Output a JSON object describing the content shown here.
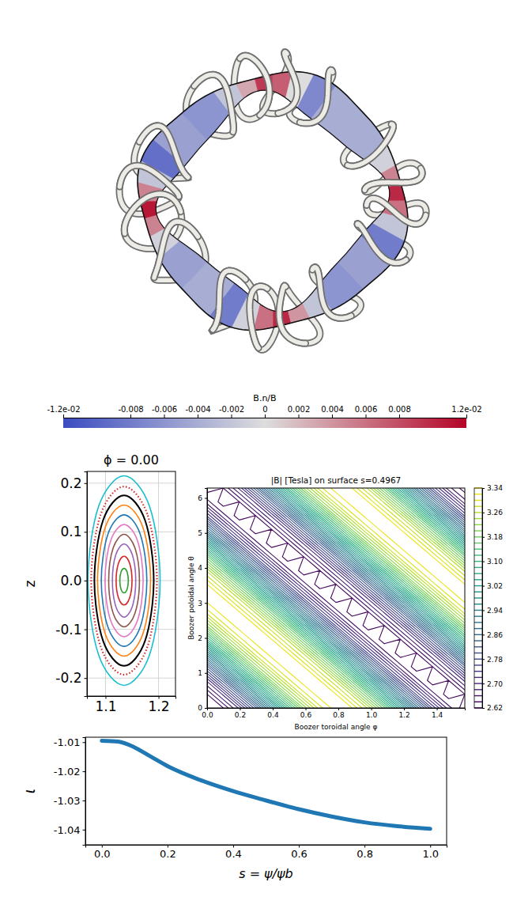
{
  "chart_data": [
    {
      "type": "surface",
      "colorbar_label": "B.n/B",
      "colorbar_range": [
        -0.012,
        0.012
      ],
      "colorbar_ticks": [
        {
          "value": -0.012,
          "label": "-1.2e-02"
        },
        -0.008,
        -0.006,
        -0.004,
        -0.002,
        0,
        0.002,
        0.004,
        0.006,
        0.008,
        {
          "value": 0.012,
          "label": "1.2e-02"
        }
      ],
      "bn_values": [
        -0.006,
        -0.002,
        0.004,
        0.01,
        0.006,
        -0.001,
        -0.008,
        -0.004,
        -0.005,
        -0.001,
        0.005,
        0.011,
        0.005,
        -0.002,
        -0.009,
        -0.005,
        -0.006,
        -0.002,
        0.003,
        0.009,
        0.007,
        0.0,
        -0.007,
        -0.004,
        -0.004,
        -0.001,
        0.005,
        0.01,
        0.006,
        -0.002,
        -0.008,
        -0.005
      ]
    },
    {
      "type": "poincare",
      "title": "ϕ = 0.00",
      "y_label": "z",
      "xlim": [
        1.065,
        1.232
      ],
      "ylim": [
        -0.237,
        0.224
      ],
      "xticks": [
        1.1,
        1.2
      ],
      "yticks": [
        -0.2,
        -0.1,
        {
          "value": 0,
          "label": "0.0"
        },
        0.1,
        0.2
      ],
      "grid": true,
      "series": [
        {
          "color": "#2ca02c",
          "x": [
            1.143,
            1.1407,
            1.135,
            1.1293,
            1.127,
            1.1293,
            1.135,
            1.1407
          ],
          "values": [
            0,
            0.0177,
            0.025,
            0.0177,
            0,
            -0.0177,
            -0.025,
            -0.0177
          ]
        },
        {
          "color": "#d62728",
          "x": [
            1.15,
            1.1456,
            1.135,
            1.1244,
            1.12,
            1.1244,
            1.135,
            1.1456
          ],
          "values": [
            0,
            0.0354,
            0.05,
            0.0354,
            0,
            -0.0354,
            -0.05,
            -0.0354
          ]
        },
        {
          "color": "#9467bd",
          "x": [
            1.157,
            1.1506,
            1.135,
            1.1194,
            1.113,
            1.1194,
            1.135,
            1.1506
          ],
          "values": [
            0,
            0.053,
            0.075,
            0.053,
            0,
            -0.053,
            -0.075,
            -0.053
          ]
        },
        {
          "color": "#8c564b",
          "x": [
            1.164,
            1.1555,
            1.135,
            1.1145,
            1.106,
            1.1145,
            1.135,
            1.1555
          ],
          "values": [
            0,
            0.0672,
            0.095,
            0.0672,
            0,
            -0.0672,
            -0.095,
            -0.0672
          ]
        },
        {
          "color": "#e377c2",
          "x": [
            1.171,
            1.1605,
            1.135,
            1.1095,
            1.099,
            1.1095,
            1.135,
            1.1605
          ],
          "values": [
            0,
            0.0813,
            0.115,
            0.0813,
            0,
            -0.0813,
            -0.115,
            -0.0813
          ]
        },
        {
          "color": "#1f77b4",
          "x": [
            1.178,
            1.1654,
            1.135,
            1.1046,
            1.092,
            1.1046,
            1.135,
            1.1654
          ],
          "values": [
            0,
            0.0955,
            0.135,
            0.0955,
            0,
            -0.0955,
            -0.135,
            -0.0955
          ]
        },
        {
          "color": "#ff7f0e",
          "x": [
            1.185,
            1.1704,
            1.135,
            1.0996,
            1.085,
            1.0996,
            1.135,
            1.1704
          ],
          "values": [
            0,
            0.1096,
            0.155,
            0.1096,
            0,
            -0.1096,
            -0.155,
            -0.1096
          ]
        },
        {
          "color": "#000000",
          "x": [
            1.191,
            1.1746,
            1.135,
            1.0954,
            1.079,
            1.0954,
            1.135,
            1.1746
          ],
          "values": [
            0,
            0.1237,
            0.175,
            0.1237,
            0,
            -0.1237,
            -0.175,
            -0.1237
          ]
        },
        {
          "color": "#d62728",
          "line_style": "dotted",
          "x": [
            1.197,
            1.1788,
            1.135,
            1.0912,
            1.073,
            1.0912,
            1.135,
            1.1788
          ],
          "values": [
            0,
            0.1365,
            0.193,
            0.1365,
            0,
            -0.1365,
            -0.193,
            -0.1365
          ]
        },
        {
          "color": "#17becf",
          "x": [
            1.203,
            1.1831,
            1.135,
            1.0869,
            1.067,
            1.0869,
            1.135,
            1.1831
          ],
          "values": [
            0,
            0.152,
            0.215,
            0.152,
            0,
            -0.152,
            -0.215,
            -0.152
          ]
        }
      ]
    },
    {
      "type": "contour",
      "title": "|B| [Tesla] on surface s=0.4967",
      "x_label": "Boozer toroidal angle φ",
      "y_label": "Boozer poloidal angle θ",
      "xlim": [
        0,
        1.5708
      ],
      "ylim": [
        0,
        6.2832
      ],
      "xticks": [
        {
          "value": 0,
          "label": "0.0"
        },
        0.2,
        0.4,
        0.6,
        0.8,
        {
          "value": 1,
          "label": "1.0"
        },
        1.2,
        1.4
      ],
      "yticks": [
        0,
        1,
        2,
        3,
        4,
        5,
        6
      ],
      "x": [
        0,
        0.0982,
        0.1963,
        0.2945,
        0.3927,
        0.4909,
        0.589,
        0.6872,
        0.7854,
        0.8836,
        0.9817,
        1.0799,
        1.1781,
        1.2763,
        1.3744,
        1.4726,
        1.5708
      ],
      "y": [
        0,
        0.3927,
        0.7854,
        1.1781,
        1.5708,
        1.9635,
        2.3562,
        2.7489,
        3.1416,
        3.5343,
        3.927,
        4.3197,
        4.7124,
        5.1051,
        5.4978,
        5.8905,
        6.2832
      ],
      "z": [
        [
          2.627,
          2.64,
          2.705,
          2.812,
          2.945,
          3.082,
          3.205,
          3.293,
          3.333,
          3.32,
          3.255,
          3.148,
          3.015,
          2.878,
          2.755,
          2.667,
          2.627
        ],
        [
          2.64,
          2.705,
          2.812,
          2.945,
          3.082,
          3.205,
          3.293,
          3.333,
          3.32,
          3.255,
          3.148,
          3.015,
          2.878,
          2.755,
          2.667,
          2.627,
          2.64
        ],
        [
          2.705,
          2.812,
          2.945,
          3.082,
          3.205,
          3.293,
          3.333,
          3.32,
          3.255,
          3.148,
          3.015,
          2.878,
          2.755,
          2.667,
          2.627,
          2.64,
          2.705
        ],
        [
          2.812,
          2.945,
          3.082,
          3.205,
          3.293,
          3.333,
          3.32,
          3.255,
          3.148,
          3.015,
          2.878,
          2.755,
          2.667,
          2.627,
          2.64,
          2.705,
          2.812
        ],
        [
          2.945,
          3.082,
          3.205,
          3.293,
          3.333,
          3.32,
          3.255,
          3.148,
          3.015,
          2.878,
          2.755,
          2.667,
          2.627,
          2.64,
          2.705,
          2.812,
          2.945
        ],
        [
          3.082,
          3.205,
          3.293,
          3.333,
          3.32,
          3.255,
          3.148,
          3.015,
          2.878,
          2.755,
          2.667,
          2.627,
          2.64,
          2.705,
          2.812,
          2.945,
          3.082
        ],
        [
          3.205,
          3.293,
          3.333,
          3.32,
          3.255,
          3.148,
          3.015,
          2.878,
          2.755,
          2.667,
          2.627,
          2.64,
          2.705,
          2.812,
          2.945,
          3.082,
          3.205
        ],
        [
          3.293,
          3.333,
          3.32,
          3.255,
          3.148,
          3.015,
          2.878,
          2.755,
          2.667,
          2.627,
          2.64,
          2.705,
          2.812,
          2.945,
          3.082,
          3.205,
          3.293
        ],
        [
          3.333,
          3.32,
          3.255,
          3.148,
          3.015,
          2.878,
          2.755,
          2.667,
          2.627,
          2.64,
          2.705,
          2.812,
          2.945,
          3.082,
          3.205,
          3.293,
          3.333
        ],
        [
          3.32,
          3.255,
          3.148,
          3.015,
          2.878,
          2.755,
          2.667,
          2.627,
          2.64,
          2.705,
          2.812,
          2.945,
          3.082,
          3.205,
          3.293,
          3.333,
          3.32
        ],
        [
          3.255,
          3.148,
          3.015,
          2.878,
          2.755,
          2.667,
          2.627,
          2.64,
          2.705,
          2.812,
          2.945,
          3.082,
          3.205,
          3.293,
          3.333,
          3.32,
          3.255
        ],
        [
          3.148,
          3.015,
          2.878,
          2.755,
          2.667,
          2.627,
          2.64,
          2.705,
          2.812,
          2.945,
          3.082,
          3.205,
          3.293,
          3.333,
          3.32,
          3.255,
          3.148
        ],
        [
          3.015,
          2.878,
          2.755,
          2.667,
          2.627,
          2.64,
          2.705,
          2.812,
          2.945,
          3.082,
          3.205,
          3.293,
          3.333,
          3.32,
          3.255,
          3.148,
          3.015
        ],
        [
          2.878,
          2.755,
          2.667,
          2.627,
          2.64,
          2.705,
          2.812,
          2.945,
          3.082,
          3.205,
          3.293,
          3.333,
          3.32,
          3.255,
          3.148,
          3.015,
          2.878
        ],
        [
          2.755,
          2.667,
          2.627,
          2.64,
          2.705,
          2.812,
          2.945,
          3.082,
          3.205,
          3.293,
          3.333,
          3.32,
          3.255,
          3.148,
          3.015,
          2.878,
          2.755
        ],
        [
          2.667,
          2.627,
          2.64,
          2.705,
          2.812,
          2.945,
          3.082,
          3.205,
          3.293,
          3.333,
          3.32,
          3.255,
          3.148,
          3.015,
          2.878,
          2.755,
          2.667
        ],
        [
          2.627,
          2.64,
          2.705,
          2.812,
          2.945,
          3.082,
          3.205,
          3.293,
          3.333,
          3.32,
          3.255,
          3.148,
          3.015,
          2.878,
          2.755,
          2.667,
          2.627
        ]
      ],
      "levels": [
        2.62,
        2.64,
        2.66,
        2.68,
        2.7,
        2.72,
        2.74,
        2.76,
        2.78,
        2.8,
        2.82,
        2.84,
        2.86,
        2.88,
        2.9,
        2.92,
        2.94,
        2.96,
        2.98,
        3.0,
        3.02,
        3.04,
        3.06,
        3.08,
        3.1,
        3.12,
        3.14,
        3.16,
        3.18,
        3.2,
        3.22,
        3.24,
        3.26,
        3.28,
        3.3,
        3.32,
        3.34
      ],
      "colorbar_range": [
        2.62,
        3.34
      ],
      "colorbar_ticks": [
        2.62,
        {
          "value": 2.7,
          "label": "2.70"
        },
        2.78,
        2.86,
        2.94,
        3.02,
        {
          "value": 3.1,
          "label": "3.10"
        },
        3.18,
        3.26,
        3.34
      ]
    },
    {
      "type": "line",
      "x_label": "s = ψ/ψb",
      "y_label": "ι",
      "xlim": [
        -0.05,
        1.05
      ],
      "ylim": [
        -1.0452,
        -1.0083
      ],
      "xticks": [
        {
          "value": 0,
          "label": "0.0"
        },
        0.2,
        0.4,
        0.6,
        0.8,
        {
          "value": 1,
          "label": "1.0"
        }
      ],
      "yticks": [
        -1.04,
        -1.03,
        -1.02,
        -1.01
      ],
      "x": [
        0,
        0.05,
        0.1,
        0.15,
        0.2,
        0.3,
        0.4,
        0.5,
        0.6,
        0.7,
        0.8,
        0.9,
        1.0
      ],
      "series": [
        {
          "color": "#1f77b4",
          "values": [
            -1.0095,
            -1.0098,
            -1.0118,
            -1.015,
            -1.0182,
            -1.023,
            -1.0268,
            -1.03,
            -1.033,
            -1.0355,
            -1.0375,
            -1.0388,
            -1.0397
          ]
        }
      ]
    }
  ]
}
